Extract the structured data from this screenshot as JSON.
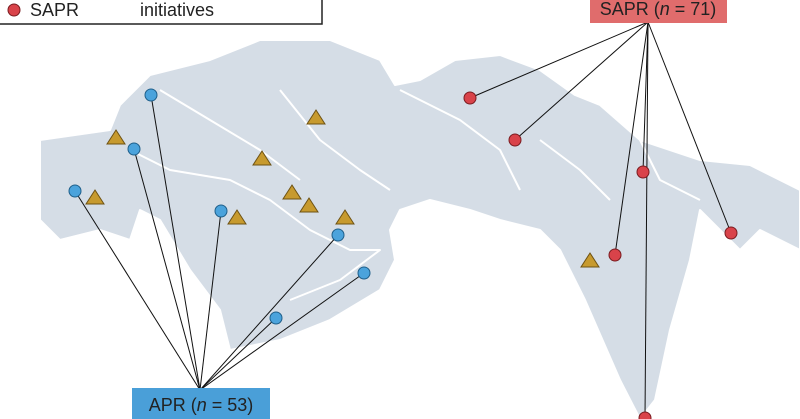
{
  "legend": {
    "marker_label": "SAPR",
    "text": "initiatives"
  },
  "labels": {
    "apr": {
      "prefix": "APR (",
      "italic": "n",
      "suffix": " = 53)"
    },
    "sapr": {
      "prefix": "SAPR (",
      "italic": "n",
      "suffix": " = 71)"
    }
  }
}
